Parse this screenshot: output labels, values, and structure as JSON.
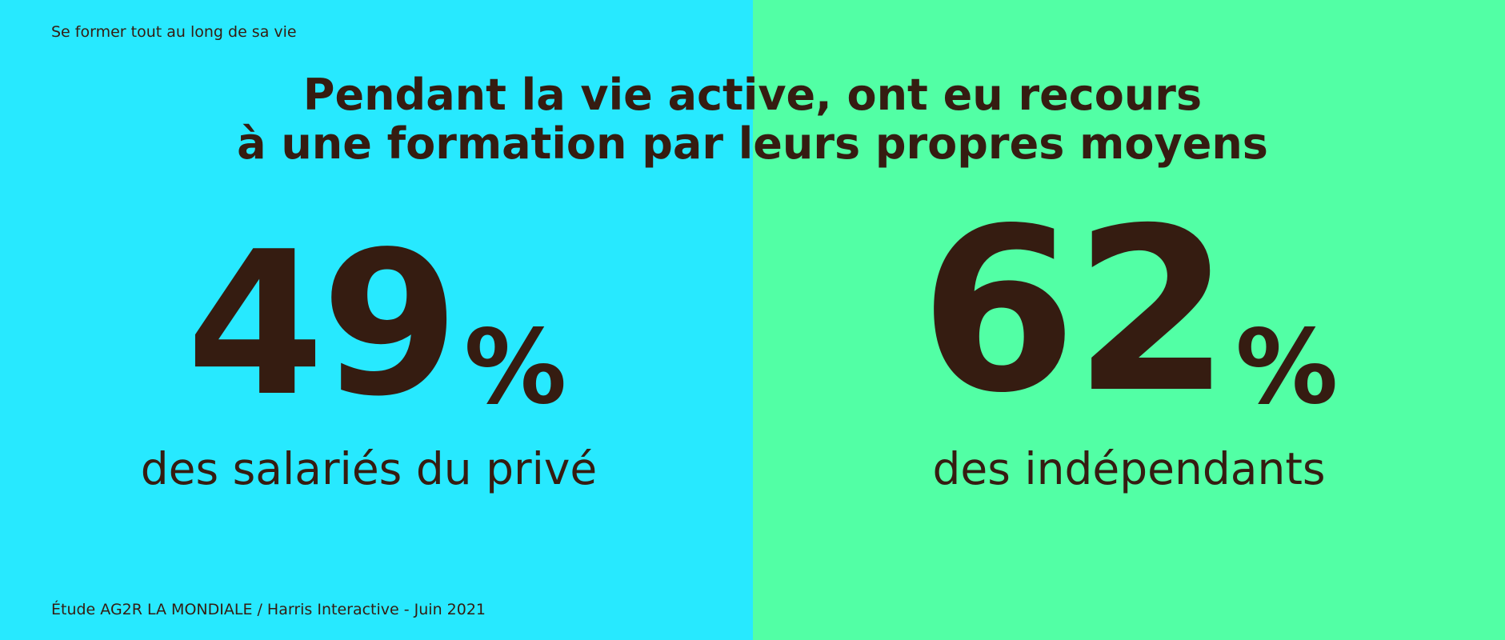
{
  "colors": {
    "left_background": "#27e9ff",
    "right_background": "#52ffa5",
    "text": "#351c11"
  },
  "kicker": "Se former tout au long de sa vie",
  "title": {
    "line1": "Pendant la vie active, ont eu recours",
    "line2": "à une formation par leurs propres moyens"
  },
  "stats": [
    {
      "value": "49",
      "unit": "%",
      "label": "des salariés du privé"
    },
    {
      "value": "62",
      "unit": "%",
      "label": "des indépendants"
    }
  ],
  "source": "Étude AG2R LA MONDIALE / Harris Interactive - Juin 2021"
}
